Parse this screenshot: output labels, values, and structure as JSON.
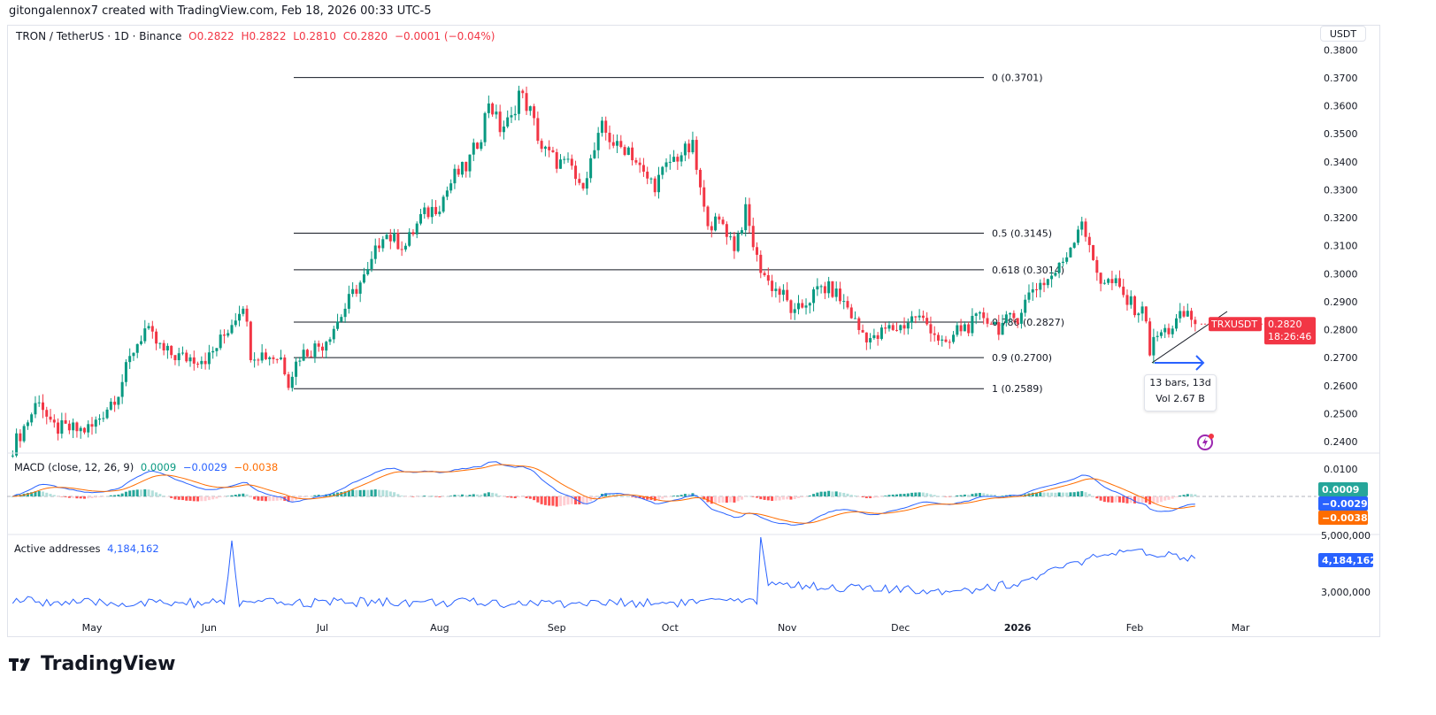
{
  "credit": "gitongalennox7 created with TradingView.com, Feb 18, 2026 00:33 UTC-5",
  "legend": {
    "symbol": "TRON / TetherUS · 1D · Binance",
    "open": "O0.2822",
    "high": "H0.2822",
    "low": "L0.2810",
    "close": "C0.2820",
    "change": "−0.0001 (−0.04%)"
  },
  "currency_button": "USDT",
  "ticker_label": "TRXUSDT",
  "last_price": "0.2820",
  "countdown": "18:26:46",
  "measure": {
    "bars": "13 bars, 13d",
    "vol": "Vol 2.67 B"
  },
  "macd_legend": {
    "title": "MACD (close, 12, 26, 9)",
    "hist": "0.0009",
    "macd": "−0.0029",
    "signal": "−0.0038"
  },
  "addr_legend": {
    "title": "Active addresses",
    "value": "4,184,162"
  },
  "footer_logo": "TradingView",
  "colors": {
    "up": "#089981",
    "down": "#f23645",
    "macd": "#2962ff",
    "signal": "#ff6d00",
    "hist_up": "#26a69a",
    "hist_down": "#ff5252"
  },
  "chart_data": [
    {
      "type": "candlestick",
      "title": "TRON / TetherUS · 1D · Binance",
      "ylim": [
        0.238,
        0.38
      ],
      "y_ticks": [
        "0.3800",
        "0.3700",
        "0.3600",
        "0.3500",
        "0.3400",
        "0.3300",
        "0.3200",
        "0.3100",
        "0.3000",
        "0.2900",
        "0.2800",
        "0.2700",
        "0.2600",
        "0.2500",
        "0.2400"
      ],
      "x_ticks": [
        "May",
        "Jun",
        "Jul",
        "Aug",
        "Sep",
        "Oct",
        "Nov",
        "Dec",
        "2026",
        "Feb",
        "Mar"
      ],
      "close_anchors": [
        [
          "2025-04-10",
          0.238
        ],
        [
          "2025-04-15",
          0.25
        ],
        [
          "2025-04-17",
          0.256
        ],
        [
          "2025-04-20",
          0.245
        ],
        [
          "2025-04-28",
          0.244
        ],
        [
          "2025-05-01",
          0.245
        ],
        [
          "2025-05-08",
          0.258
        ],
        [
          "2025-05-12",
          0.273
        ],
        [
          "2025-05-15",
          0.28
        ],
        [
          "2025-05-20",
          0.272
        ],
        [
          "2025-05-25",
          0.27
        ],
        [
          "2025-06-01",
          0.27
        ],
        [
          "2025-06-05",
          0.278
        ],
        [
          "2025-06-10",
          0.29
        ],
        [
          "2025-06-12",
          0.272
        ],
        [
          "2025-06-20",
          0.27
        ],
        [
          "2025-06-22",
          0.262
        ],
        [
          "2025-06-25",
          0.271
        ],
        [
          "2025-07-01",
          0.275
        ],
        [
          "2025-07-05",
          0.283
        ],
        [
          "2025-07-10",
          0.295
        ],
        [
          "2025-07-13",
          0.3
        ],
        [
          "2025-07-17",
          0.315
        ],
        [
          "2025-07-20",
          0.312
        ],
        [
          "2025-07-23",
          0.31
        ],
        [
          "2025-07-27",
          0.32
        ],
        [
          "2025-08-01",
          0.325
        ],
        [
          "2025-08-05",
          0.335
        ],
        [
          "2025-08-08",
          0.338
        ],
        [
          "2025-08-12",
          0.35
        ],
        [
          "2025-08-14",
          0.362
        ],
        [
          "2025-08-17",
          0.352
        ],
        [
          "2025-08-20",
          0.355
        ],
        [
          "2025-08-22",
          0.365
        ],
        [
          "2025-08-25",
          0.358
        ],
        [
          "2025-08-28",
          0.345
        ],
        [
          "2025-09-01",
          0.34
        ],
        [
          "2025-09-05",
          0.338
        ],
        [
          "2025-09-07",
          0.33
        ],
        [
          "2025-09-10",
          0.34
        ],
        [
          "2025-09-13",
          0.352
        ],
        [
          "2025-09-17",
          0.345
        ],
        [
          "2025-09-20",
          0.345
        ],
        [
          "2025-09-24",
          0.335
        ],
        [
          "2025-09-27",
          0.332
        ],
        [
          "2025-10-01",
          0.34
        ],
        [
          "2025-10-04",
          0.343
        ],
        [
          "2025-10-07",
          0.345
        ],
        [
          "2025-10-10",
          0.322
        ],
        [
          "2025-10-12",
          0.318
        ],
        [
          "2025-10-15",
          0.318
        ],
        [
          "2025-10-18",
          0.31
        ],
        [
          "2025-10-21",
          0.322
        ],
        [
          "2025-10-24",
          0.305
        ],
        [
          "2025-10-27",
          0.297
        ],
        [
          "2025-10-31",
          0.292
        ],
        [
          "2025-11-03",
          0.285
        ],
        [
          "2025-11-06",
          0.29
        ],
        [
          "2025-11-10",
          0.295
        ],
        [
          "2025-11-13",
          0.294
        ],
        [
          "2025-11-17",
          0.288
        ],
        [
          "2025-11-20",
          0.28
        ],
        [
          "2025-11-24",
          0.276
        ],
        [
          "2025-11-27",
          0.28
        ],
        [
          "2025-12-01",
          0.281
        ],
        [
          "2025-12-05",
          0.285
        ],
        [
          "2025-12-09",
          0.281
        ],
        [
          "2025-12-13",
          0.273
        ],
        [
          "2025-12-16",
          0.28
        ],
        [
          "2025-12-20",
          0.282
        ],
        [
          "2025-12-23",
          0.285
        ],
        [
          "2025-12-27",
          0.281
        ],
        [
          "2026-01-01",
          0.285
        ],
        [
          "2026-01-05",
          0.295
        ],
        [
          "2026-01-09",
          0.298
        ],
        [
          "2026-01-12",
          0.302
        ],
        [
          "2026-01-15",
          0.31
        ],
        [
          "2026-01-18",
          0.32
        ],
        [
          "2026-01-20",
          0.308
        ],
        [
          "2026-01-23",
          0.298
        ],
        [
          "2026-01-27",
          0.296
        ],
        [
          "2026-01-30",
          0.29
        ],
        [
          "2026-02-02",
          0.287
        ],
        [
          "2026-02-04",
          0.285
        ],
        [
          "2026-02-05",
          0.272
        ],
        [
          "2026-02-07",
          0.278
        ],
        [
          "2026-02-10",
          0.28
        ],
        [
          "2026-02-13",
          0.284
        ],
        [
          "2026-02-15",
          0.286
        ],
        [
          "2026-02-17",
          0.282
        ]
      ],
      "fib_levels": [
        {
          "label": "0 (0.3701)",
          "price": 0.3701
        },
        {
          "label": "0.5 (0.3145)",
          "price": 0.3145
        },
        {
          "label": "0.618 (0.3014)",
          "price": 0.3014
        },
        {
          "label": "0.786 (0.2827)",
          "price": 0.2827
        },
        {
          "label": "0.9 (0.2700)",
          "price": 0.27
        },
        {
          "label": "1 (0.2589)",
          "price": 0.2589
        }
      ]
    },
    {
      "type": "line",
      "title": "MACD (close, 12, 26, 9)",
      "y_ticks": [
        "0.0100"
      ],
      "last": {
        "histogram": 0.0009,
        "macd": -0.0029,
        "signal": -0.0038
      }
    },
    {
      "type": "line",
      "title": "Active addresses",
      "y_ticks": [
        "5,000,000",
        "3,000,000"
      ],
      "anchors": [
        [
          "2025-04-10",
          2700000
        ],
        [
          "2025-05-01",
          2600000
        ],
        [
          "2025-06-05",
          2600000
        ],
        [
          "2025-06-07",
          4700000
        ],
        [
          "2025-06-09",
          2600000
        ],
        [
          "2025-07-15",
          2650000
        ],
        [
          "2025-09-01",
          2600000
        ],
        [
          "2025-10-20",
          2650000
        ],
        [
          "2025-10-24",
          2550000
        ],
        [
          "2025-10-25",
          5200000
        ],
        [
          "2025-10-27",
          3300000
        ],
        [
          "2025-11-10",
          3200000
        ],
        [
          "2025-12-01",
          3050000
        ],
        [
          "2025-12-20",
          3100000
        ],
        [
          "2026-01-01",
          3300000
        ],
        [
          "2026-01-10",
          3700000
        ],
        [
          "2026-01-18",
          4100000
        ],
        [
          "2026-01-25",
          4300000
        ],
        [
          "2026-02-05",
          4400000
        ],
        [
          "2026-02-12",
          4300000
        ],
        [
          "2026-02-17",
          4184162
        ]
      ]
    }
  ]
}
